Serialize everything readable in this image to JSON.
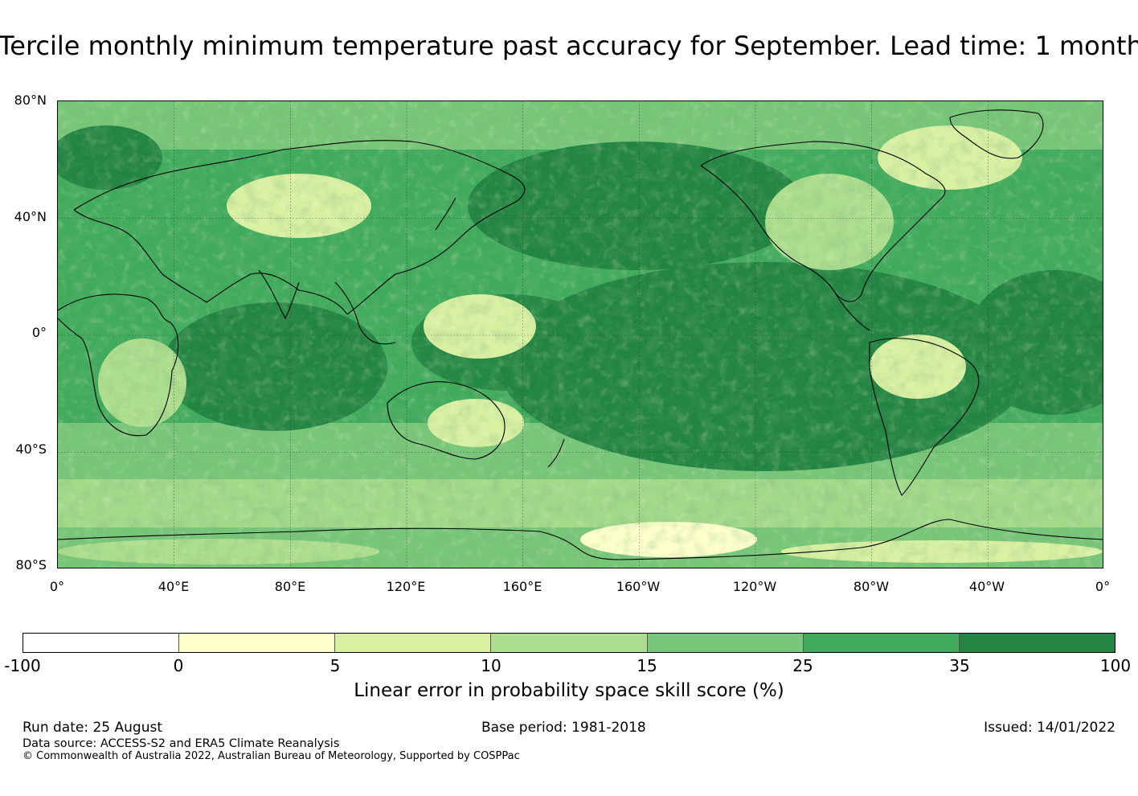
{
  "title": "Tercile monthly minimum temperature past accuracy for September. Lead time: 1 month",
  "map": {
    "lat_labels": [
      "80°N",
      "40°N",
      "0°",
      "40°S",
      "80°S"
    ],
    "lon_labels": [
      "0°",
      "40°E",
      "80°E",
      "120°E",
      "160°E",
      "160°W",
      "120°W",
      "80°W",
      "40°W",
      "0°"
    ]
  },
  "colorbar": {
    "ticks": [
      "-100",
      "0",
      "5",
      "10",
      "15",
      "25",
      "35",
      "100"
    ],
    "colors": [
      "#ffffff",
      "#ffffcc",
      "#d9f0a3",
      "#addd8e",
      "#78c679",
      "#41ab5d",
      "#238443"
    ],
    "label": "Linear error in probability space skill score (%)"
  },
  "footer": {
    "run_date": "Run date: 25 August",
    "base_period": "Base period: 1981-2018",
    "issued": "Issued: 14/01/2022",
    "data_source": "Data source: ACCESS-S2 and ERA5 Climate Reanalysis",
    "copyright": "© Commonwealth of Australia 2022, Australian Bureau of Meteorology, Supported by COSPPac"
  }
}
